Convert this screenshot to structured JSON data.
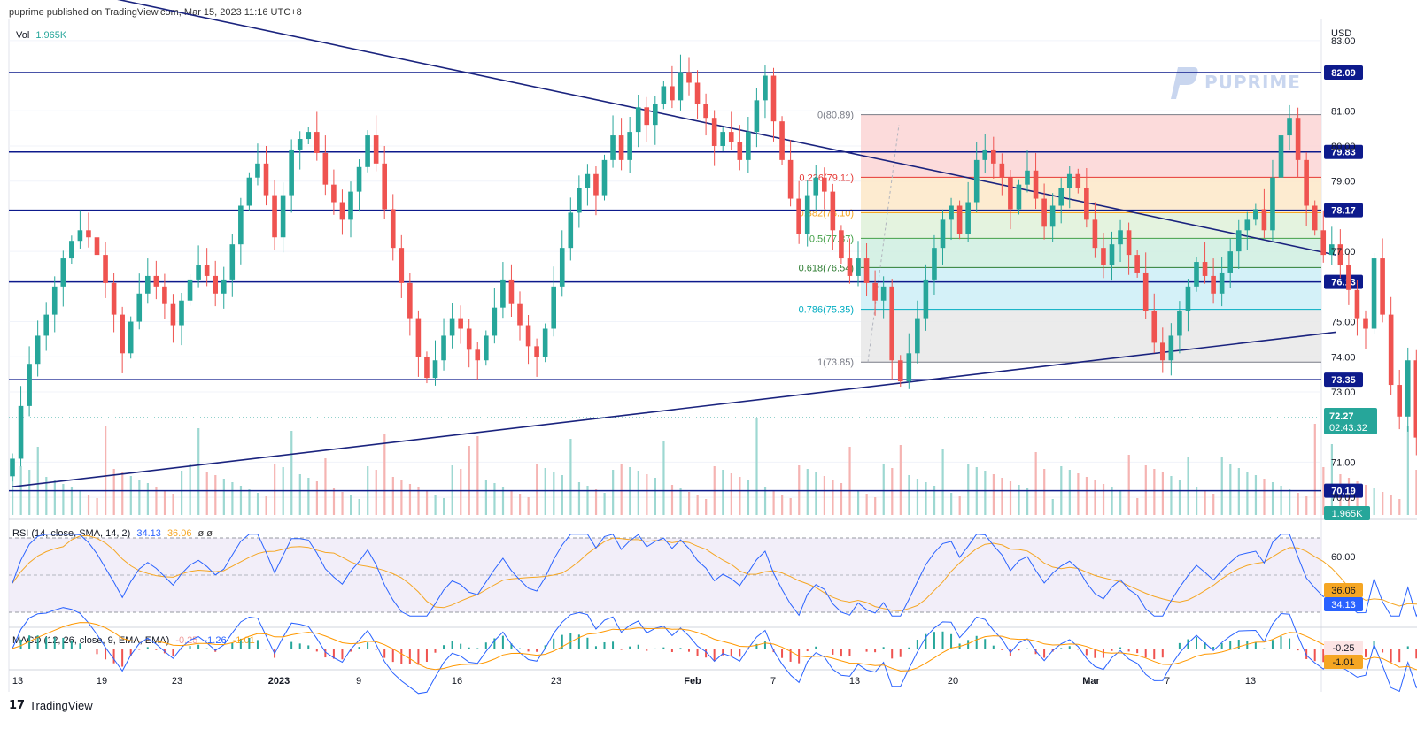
{
  "header": {
    "text": "puprime published on TradingView.com, Mar 15, 2023 11:16 UTC+8"
  },
  "vol_label": {
    "name": "Vol",
    "value": "1.965K"
  },
  "currency": "USD",
  "watermark": "PUPRIME",
  "footer": {
    "logo_mark": "17",
    "text": "TradingView"
  },
  "rsi_label": {
    "name": "RSI (14, close, SMA, 14, 2)",
    "v1": "34.13",
    "v2": "36.06",
    "v3": "ø ø"
  },
  "macd_label": {
    "name": "MACD (12, 26, close, 9, EMA, EMA)",
    "v1": "-0.25",
    "v2": "-1.26",
    "v3": "-1.01"
  },
  "colors": {
    "up": "#26a69a",
    "down": "#ef5350",
    "level": "#0d1a8c",
    "rsi": "#2962ff",
    "rsi_ma": "#f5a623"
  },
  "chart_data": {
    "type": "candlestick",
    "price_axis": {
      "ticks": [
        83.0,
        81.0,
        80.0,
        79.0,
        77.0,
        75.0,
        74.0,
        73.0,
        71.0,
        70.0
      ],
      "ylim": [
        69.5,
        83.6
      ]
    },
    "time_axis": [
      "13",
      "19",
      "23",
      "2023",
      "9",
      "16",
      "23",
      "Feb",
      "7",
      "13",
      "20",
      "Mar",
      "7",
      "13"
    ],
    "horizontal_levels": [
      82.09,
      79.83,
      78.17,
      76.13,
      73.35,
      70.19
    ],
    "last_price": {
      "value": "72.27",
      "countdown": "02:43:32"
    },
    "volume_last": "1.965K",
    "fibonacci": [
      {
        "label": "0(80.89)",
        "value": 80.89,
        "color": "#787b86"
      },
      {
        "label": "0.236(79.11)",
        "value": 79.11,
        "color": "#e53935"
      },
      {
        "label": "0.382(78.10)",
        "value": 78.1,
        "color": "#f5a623"
      },
      {
        "label": "0.5(77.37)",
        "value": 77.37,
        "color": "#43a047"
      },
      {
        "label": "0.618(76.54)",
        "value": 76.54,
        "color": "#2e7d32"
      },
      {
        "label": "0.786(75.35)",
        "value": 75.35,
        "color": "#00acc1"
      },
      {
        "label": "1(73.85)",
        "value": 73.85,
        "color": "#787b86"
      }
    ],
    "trendlines": [
      {
        "name": "descending",
        "from": [
          0,
          84.8
        ],
        "to": [
          146,
          76.9
        ]
      },
      {
        "name": "ascending",
        "from": [
          0,
          70.3
        ],
        "to": [
          146,
          74.7
        ]
      }
    ],
    "closes": [
      71.1,
      72.6,
      73.8,
      74.6,
      75.2,
      76.0,
      76.8,
      77.3,
      77.6,
      77.4,
      76.9,
      76.1,
      75.2,
      74.1,
      75.0,
      75.8,
      76.3,
      76.0,
      75.5,
      74.9,
      75.6,
      76.2,
      76.6,
      76.3,
      75.8,
      76.2,
      77.2,
      78.3,
      79.1,
      79.5,
      78.6,
      77.4,
      78.6,
      79.9,
      80.2,
      80.4,
      79.8,
      78.9,
      78.4,
      77.9,
      78.7,
      79.4,
      80.3,
      79.5,
      78.2,
      77.1,
      76.1,
      75.1,
      74.0,
      73.4,
      73.9,
      74.6,
      75.1,
      74.8,
      74.2,
      73.9,
      74.6,
      75.4,
      76.2,
      75.5,
      74.9,
      74.3,
      74.0,
      74.8,
      76.0,
      77.1,
      78.1,
      78.8,
      79.2,
      78.6,
      79.6,
      80.3,
      79.6,
      80.4,
      81.1,
      80.6,
      81.2,
      81.7,
      81.3,
      82.1,
      81.8,
      81.2,
      80.8,
      80.0,
      80.4,
      80.1,
      79.6,
      80.4,
      81.3,
      82.0,
      80.7,
      79.6,
      78.5,
      77.5,
      78.6,
      79.1,
      78.7,
      77.6,
      76.8,
      76.3,
      76.8,
      76.1,
      75.6,
      76.0,
      73.9,
      73.3,
      74.1,
      75.1,
      76.2,
      77.1,
      77.9,
      78.3,
      77.5,
      78.4,
      79.6,
      79.9,
      79.5,
      79.1,
      78.2,
      78.9,
      79.3,
      78.5,
      77.7,
      78.3,
      78.8,
      79.2,
      78.8,
      77.9,
      77.1,
      76.6,
      77.2,
      77.6,
      76.9,
      76.4,
      75.3,
      74.4,
      73.9,
      74.6,
      75.3,
      76.0,
      76.7,
      76.3,
      75.8,
      76.4,
      77.0,
      77.6,
      77.9,
      78.2,
      77.6,
      79.1,
      80.3,
      80.8,
      79.6,
      78.3,
      77.6,
      76.9,
      77.2,
      76.6,
      75.9,
      75.1,
      74.8,
      76.8,
      75.2,
      73.2,
      72.3,
      73.9,
      71.7,
      72.27
    ]
  }
}
